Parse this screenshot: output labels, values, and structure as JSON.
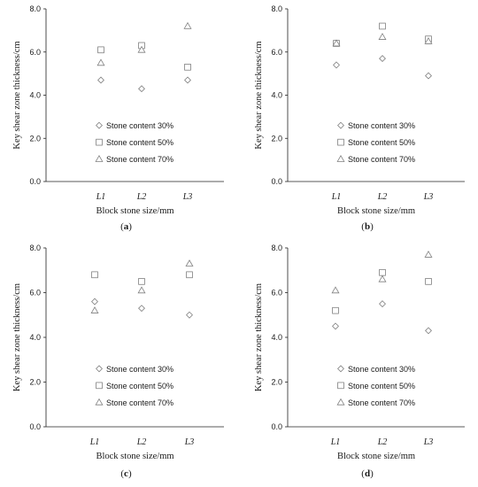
{
  "chart_data": [
    {
      "type": "scatter",
      "panel_label": "a",
      "xlabel": "Block stone size/mm",
      "ylabel": "Key shear zone thickness/cm",
      "categories": [
        "L1",
        "L2",
        "L3"
      ],
      "ylim": [
        0,
        8
      ],
      "yticks": [
        "0.0",
        "2.0",
        "4.0",
        "6.0",
        "8.0"
      ],
      "legend_position": "lower-left",
      "series": [
        {
          "name": "Stone content 30%",
          "marker": "diamond",
          "values": [
            4.7,
            4.3,
            4.7
          ]
        },
        {
          "name": "Stone content 50%",
          "marker": "square",
          "values": [
            6.1,
            6.3,
            5.3
          ]
        },
        {
          "name": "Stone content 70%",
          "marker": "triangle",
          "values": [
            5.5,
            6.1,
            7.2
          ]
        }
      ]
    },
    {
      "type": "scatter",
      "panel_label": "b",
      "xlabel": "Block stone size/mm",
      "ylabel": "Key shear zone thickness/cm",
      "categories": [
        "L1",
        "L2",
        "L3"
      ],
      "ylim": [
        0,
        8
      ],
      "yticks": [
        "0.0",
        "2.0",
        "4.0",
        "6.0",
        "8.0"
      ],
      "legend_position": "lower-left",
      "series": [
        {
          "name": "Stone content 30%",
          "marker": "diamond",
          "values": [
            5.4,
            5.7,
            4.9
          ]
        },
        {
          "name": "Stone content 50%",
          "marker": "square",
          "values": [
            6.4,
            7.2,
            6.6
          ]
        },
        {
          "name": "Stone content 70%",
          "marker": "triangle",
          "values": [
            6.4,
            6.7,
            6.5
          ]
        }
      ]
    },
    {
      "type": "scatter",
      "panel_label": "c",
      "xlabel": "Block stone size/mm",
      "ylabel": "Key shear zone thickness/cm",
      "categories": [
        "L1",
        "L2",
        "L3"
      ],
      "ylim": [
        0,
        8
      ],
      "yticks": [
        "0.0",
        "2.0",
        "4.0",
        "6.0",
        "8.0"
      ],
      "legend_position": "lower-left",
      "series": [
        {
          "name": "Stone content 30%",
          "marker": "diamond",
          "values": [
            5.6,
            5.3,
            5.0
          ]
        },
        {
          "name": "Stone content 50%",
          "marker": "square",
          "values": [
            6.8,
            6.5,
            6.8
          ]
        },
        {
          "name": "Stone content 70%",
          "marker": "triangle",
          "values": [
            5.2,
            6.1,
            7.3
          ]
        }
      ]
    },
    {
      "type": "scatter",
      "panel_label": "d",
      "xlabel": "Block stone size/mm",
      "ylabel": "Key shear zone thickness/cm",
      "categories": [
        "L1",
        "L2",
        "L3"
      ],
      "ylim": [
        0,
        8
      ],
      "yticks": [
        "0.0",
        "2.0",
        "4.0",
        "6.0",
        "8.0"
      ],
      "legend_position": "lower-left",
      "series": [
        {
          "name": "Stone content 30%",
          "marker": "diamond",
          "values": [
            4.5,
            5.5,
            4.3
          ]
        },
        {
          "name": "Stone content 50%",
          "marker": "square",
          "values": [
            5.2,
            6.9,
            6.5
          ]
        },
        {
          "name": "Stone content 70%",
          "marker": "triangle",
          "values": [
            6.1,
            6.6,
            7.7
          ]
        }
      ]
    }
  ]
}
